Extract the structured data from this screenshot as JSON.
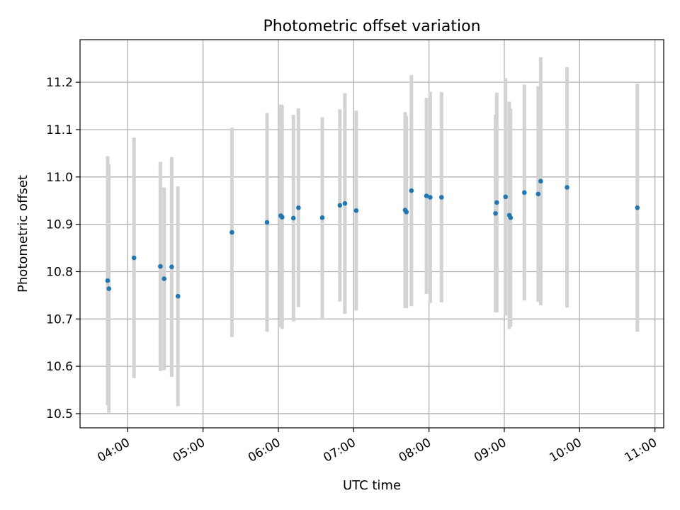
{
  "chart_data": {
    "type": "scatter",
    "title": "Photometric offset variation",
    "xlabel": "UTC time",
    "ylabel": "Photometric offset",
    "xlim": [
      "03:22",
      "11:07"
    ],
    "ylim": [
      10.47,
      11.29
    ],
    "x_ticks": [
      "04:00",
      "05:00",
      "06:00",
      "07:00",
      "08:00",
      "09:00",
      "10:00",
      "11:00"
    ],
    "y_ticks": [
      10.5,
      10.6,
      10.7,
      10.8,
      10.9,
      11.0,
      11.1,
      11.2
    ],
    "grid": true,
    "errorbar_color": "#d3d3d3",
    "marker_color": "#1f77b4",
    "series": [
      {
        "points": [
          {
            "x": "03:44",
            "y": 10.781,
            "err": 0.263
          },
          {
            "x": "03:45",
            "y": 10.764,
            "err": 0.262
          },
          {
            "x": "04:05",
            "y": 10.829,
            "err": 0.254
          },
          {
            "x": "04:26",
            "y": 10.811,
            "err": 0.221
          },
          {
            "x": "04:29",
            "y": 10.785,
            "err": 0.193
          },
          {
            "x": "04:35",
            "y": 10.81,
            "err": 0.232
          },
          {
            "x": "04:40",
            "y": 10.748,
            "err": 0.232
          },
          {
            "x": "05:23",
            "y": 10.883,
            "err": 0.221
          },
          {
            "x": "05:51",
            "y": 10.904,
            "err": 0.231
          },
          {
            "x": "06:02",
            "y": 10.918,
            "err": 0.235
          },
          {
            "x": "06:03",
            "y": 10.915,
            "err": 0.236
          },
          {
            "x": "06:12",
            "y": 10.913,
            "err": 0.218
          },
          {
            "x": "06:16",
            "y": 10.935,
            "err": 0.21
          },
          {
            "x": "06:35",
            "y": 10.914,
            "err": 0.212
          },
          {
            "x": "06:49",
            "y": 10.94,
            "err": 0.203
          },
          {
            "x": "06:53",
            "y": 10.944,
            "err": 0.233
          },
          {
            "x": "07:02",
            "y": 10.929,
            "err": 0.211
          },
          {
            "x": "07:41",
            "y": 10.93,
            "err": 0.207
          },
          {
            "x": "07:42",
            "y": 10.926,
            "err": 0.203
          },
          {
            "x": "07:46",
            "y": 10.971,
            "err": 0.244
          },
          {
            "x": "07:58",
            "y": 10.96,
            "err": 0.207
          },
          {
            "x": "08:01",
            "y": 10.957,
            "err": 0.223
          },
          {
            "x": "08:10",
            "y": 10.957,
            "err": 0.222
          },
          {
            "x": "08:53",
            "y": 10.923,
            "err": 0.209
          },
          {
            "x": "08:54",
            "y": 10.946,
            "err": 0.232
          },
          {
            "x": "09:01",
            "y": 10.958,
            "err": 0.251
          },
          {
            "x": "09:04",
            "y": 10.919,
            "err": 0.24
          },
          {
            "x": "09:05",
            "y": 10.914,
            "err": 0.23
          },
          {
            "x": "09:16",
            "y": 10.967,
            "err": 0.228
          },
          {
            "x": "09:27",
            "y": 10.964,
            "err": 0.228
          },
          {
            "x": "09:29",
            "y": 10.991,
            "err": 0.262
          },
          {
            "x": "09:50",
            "y": 10.978,
            "err": 0.254
          },
          {
            "x": "10:46",
            "y": 10.935,
            "err": 0.262
          }
        ]
      }
    ]
  }
}
